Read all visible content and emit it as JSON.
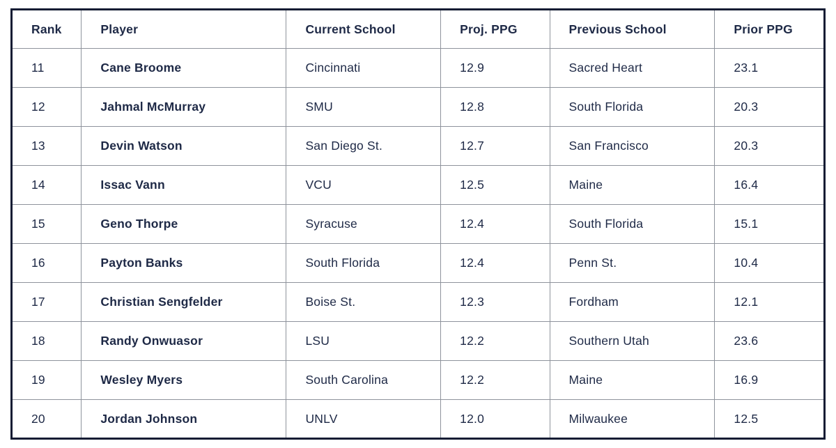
{
  "colors": {
    "text": "#1e2946",
    "outer_border": "#141c33",
    "inner_border": "#8e939c",
    "background": "#ffffff"
  },
  "chart_data": {
    "type": "table",
    "columns": [
      "Rank",
      "Player",
      "Current School",
      "Proj. PPG",
      "Previous School",
      "Prior PPG"
    ],
    "rows": [
      [
        "11",
        "Cane Broome",
        "Cincinnati",
        "12.9",
        "Sacred Heart",
        "23.1"
      ],
      [
        "12",
        "Jahmal McMurray",
        "SMU",
        "12.8",
        "South Florida",
        "20.3"
      ],
      [
        "13",
        "Devin Watson",
        "San Diego St.",
        "12.7",
        "San Francisco",
        "20.3"
      ],
      [
        "14",
        "Issac Vann",
        "VCU",
        "12.5",
        "Maine",
        "16.4"
      ],
      [
        "15",
        "Geno Thorpe",
        "Syracuse",
        "12.4",
        "South Florida",
        "15.1"
      ],
      [
        "16",
        "Payton Banks",
        "South Florida",
        "12.4",
        "Penn St.",
        "10.4"
      ],
      [
        "17",
        "Christian Sengfelder",
        "Boise St.",
        "12.3",
        "Fordham",
        "12.1"
      ],
      [
        "18",
        "Randy Onwuasor",
        "LSU",
        "12.2",
        "Southern Utah",
        "23.6"
      ],
      [
        "19",
        "Wesley Myers",
        "South Carolina",
        "12.2",
        "Maine",
        "16.9"
      ],
      [
        "20",
        "Jordan Johnson",
        "UNLV",
        "12.0",
        "Milwaukee",
        "12.5"
      ]
    ]
  }
}
